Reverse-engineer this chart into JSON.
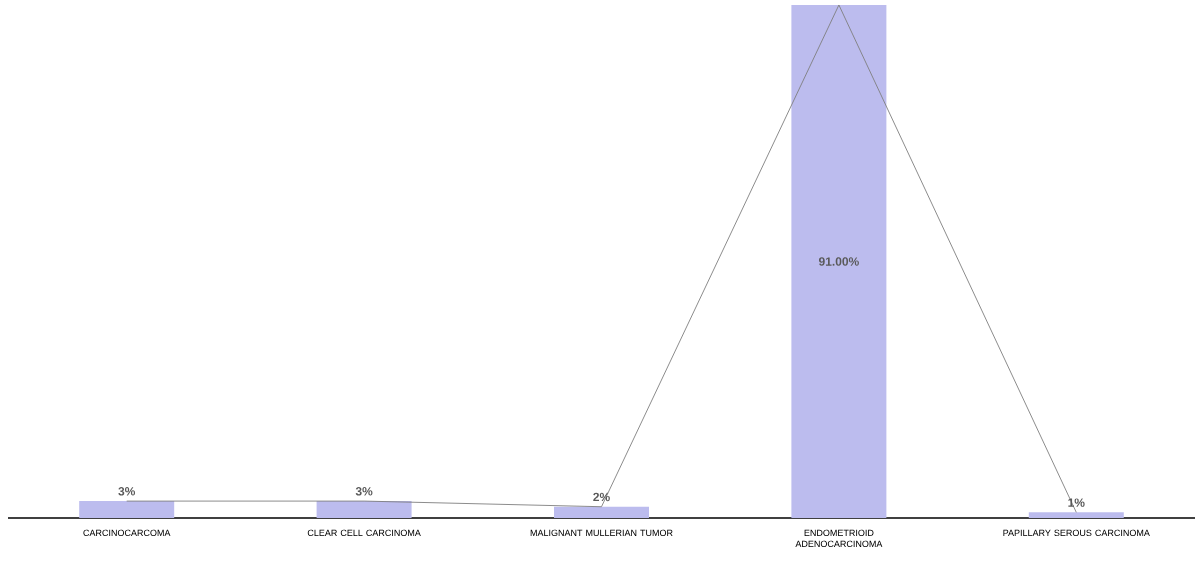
{
  "chart_data": {
    "type": "bar",
    "categories": [
      "CARCINOCARCOMA",
      "CLEAR CELL CARCINOMA",
      "MALIGNANT MULLERIAN TUMOR",
      "ENDOMETRIOID ADENOCARCINOMA",
      "PAPILLARY SEROUS CARCINOMA"
    ],
    "series": [
      {
        "color": "#bcbcee",
        "values": [
          3,
          3,
          2,
          91,
          1
        ],
        "value_labels": [
          "3%",
          "3%",
          "2%",
          "91.00%",
          "1%"
        ]
      },
      {
        "type": "line",
        "color": "#7f7f7f",
        "values": [
          3,
          3,
          2,
          91,
          1
        ]
      }
    ]
  }
}
